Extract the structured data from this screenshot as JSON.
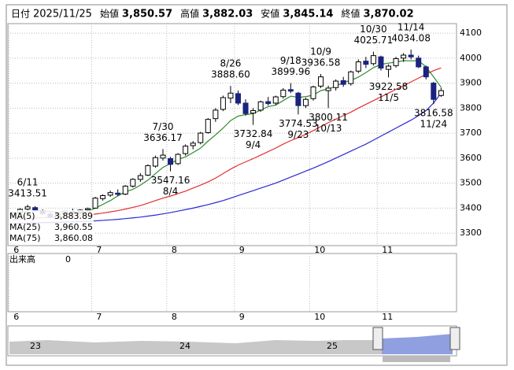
{
  "chart_data": {
    "type": "candlestick",
    "header": [
      {
        "label": "日付",
        "value": "2025/11/25"
      },
      {
        "label": "始値",
        "value": "3,850.57",
        "color": "#000000"
      },
      {
        "label": "高値",
        "value": "3,882.03",
        "color": "#e02020"
      },
      {
        "label": "安値",
        "value": "3,845.14",
        "color": "#208020"
      },
      {
        "label": "終値",
        "value": "3,870.02",
        "color": "#000000"
      }
    ],
    "categories": [
      "6",
      null,
      null,
      null,
      null,
      null,
      null,
      null,
      null,
      null,
      null,
      "7",
      null,
      null,
      null,
      null,
      null,
      null,
      null,
      null,
      null,
      "8",
      null,
      null,
      null,
      null,
      null,
      null,
      null,
      null,
      "9",
      null,
      null,
      null,
      null,
      null,
      null,
      null,
      null,
      null,
      "10",
      null,
      null,
      null,
      null,
      null,
      null,
      null,
      null,
      "11",
      null,
      null,
      null,
      null,
      null,
      null,
      null,
      null
    ],
    "ohlc": [
      [
        3370,
        3385,
        3362,
        3380
      ],
      [
        3382,
        3400,
        3375,
        3395
      ],
      [
        3396,
        3413.51,
        3390,
        3405
      ],
      [
        3402,
        3408,
        3385,
        3390
      ],
      [
        3388,
        3395,
        3372,
        3378
      ],
      [
        3376,
        3384,
        3360,
        3365
      ],
      [
        3365,
        3380,
        3358,
        3375
      ],
      [
        3376,
        3392,
        3370,
        3388
      ],
      [
        3387,
        3398,
        3378,
        3383
      ],
      [
        3384,
        3396,
        3375,
        3392
      ],
      [
        3393,
        3402,
        3382,
        3398
      ],
      [
        3400,
        3445,
        3398,
        3440
      ],
      [
        3438,
        3455,
        3430,
        3450
      ],
      [
        3452,
        3470,
        3445,
        3462
      ],
      [
        3460,
        3475,
        3448,
        3455
      ],
      [
        3456,
        3492,
        3452,
        3488
      ],
      [
        3488,
        3520,
        3482,
        3515
      ],
      [
        3515,
        3540,
        3505,
        3530
      ],
      [
        3532,
        3575,
        3528,
        3570
      ],
      [
        3568,
        3610,
        3562,
        3602
      ],
      [
        3600,
        3636.17,
        3590,
        3612
      ],
      [
        3598,
        3605,
        3547.16,
        3575
      ],
      [
        3578,
        3620,
        3572,
        3615
      ],
      [
        3618,
        3655,
        3610,
        3648
      ],
      [
        3650,
        3668,
        3635,
        3660
      ],
      [
        3662,
        3705,
        3655,
        3700
      ],
      [
        3702,
        3760,
        3698,
        3755
      ],
      [
        3758,
        3800,
        3745,
        3792
      ],
      [
        3795,
        3850,
        3788,
        3842
      ],
      [
        3840,
        3888.6,
        3820,
        3860
      ],
      [
        3858,
        3870,
        3812,
        3820
      ],
      [
        3820,
        3835,
        3770,
        3778
      ],
      [
        3780,
        3800,
        3732.84,
        3790
      ],
      [
        3792,
        3830,
        3785,
        3825
      ],
      [
        3826,
        3845,
        3810,
        3818
      ],
      [
        3820,
        3850,
        3812,
        3845
      ],
      [
        3846,
        3880,
        3838,
        3872
      ],
      [
        3874,
        3899.96,
        3860,
        3868
      ],
      [
        3860,
        3865,
        3774.53,
        3810
      ],
      [
        3810,
        3842,
        3800,
        3835
      ],
      [
        3838,
        3890,
        3830,
        3885
      ],
      [
        3888,
        3936.58,
        3880,
        3925
      ],
      [
        3870,
        3890,
        3800.11,
        3880
      ],
      [
        3882,
        3915,
        3870,
        3908
      ],
      [
        3910,
        3925,
        3885,
        3895
      ],
      [
        3898,
        3950,
        3890,
        3945
      ],
      [
        3948,
        3995,
        3940,
        3985
      ],
      [
        3988,
        4005,
        3960,
        3975
      ],
      [
        3978,
        4025.71,
        3970,
        4010
      ],
      [
        4005,
        4010,
        3950,
        3960
      ],
      [
        3955,
        3975,
        3922.58,
        3968
      ],
      [
        3970,
        4005,
        3962,
        3998
      ],
      [
        4000,
        4020,
        3985,
        4012
      ],
      [
        4012,
        4034.08,
        3995,
        4005
      ],
      [
        4000,
        4010,
        3960,
        3965
      ],
      [
        3965,
        3970,
        3915,
        3925
      ],
      [
        3900,
        3905,
        3816.58,
        3835
      ],
      [
        3850.57,
        3882.03,
        3845.14,
        3870.02
      ]
    ],
    "up_color": "#ffffff",
    "down_color": "#1a237e",
    "series": [
      {
        "name": "MA(5)",
        "value_label": "3,883.89",
        "color": "#2e8b2e",
        "values": [
          3375,
          3380,
          3388,
          3390,
          3390,
          3387,
          3383,
          3379,
          3378,
          3380,
          3387,
          3400,
          3415,
          3430,
          3449,
          3465,
          3475,
          3492,
          3512,
          3538,
          3563,
          3578,
          3595,
          3605,
          3622,
          3640,
          3668,
          3693,
          3720,
          3750,
          3768,
          3774,
          3778,
          3792,
          3806,
          3812,
          3830,
          3848,
          3843,
          3846,
          3852,
          3870,
          3877,
          3887,
          3903,
          3911,
          3924,
          3942,
          3962,
          3975,
          3980,
          3984,
          3990,
          3989,
          3990,
          3965,
          3925,
          3883.89
        ]
      },
      {
        "name": "MA(25)",
        "value_label": "3,960.55",
        "color": "#e03030",
        "values": [
          3352,
          3355,
          3358,
          3360,
          3362,
          3363,
          3365,
          3366,
          3368,
          3370,
          3372,
          3376,
          3380,
          3385,
          3390,
          3396,
          3403,
          3410,
          3420,
          3430,
          3440,
          3448,
          3458,
          3468,
          3480,
          3492,
          3505,
          3520,
          3538,
          3556,
          3572,
          3585,
          3598,
          3612,
          3626,
          3640,
          3656,
          3670,
          3682,
          3695,
          3710,
          3726,
          3742,
          3756,
          3770,
          3784,
          3800,
          3815,
          3830,
          3845,
          3860,
          3875,
          3890,
          3905,
          3920,
          3935,
          3950,
          3960.55
        ]
      },
      {
        "name": "MA(75)",
        "value_label": "3,860.08",
        "color": "#2a2ad0",
        "values": [
          3338,
          3339,
          3340,
          3341,
          3342,
          3342,
          3343,
          3344,
          3345,
          3346,
          3347,
          3349,
          3351,
          3353,
          3355,
          3358,
          3361,
          3364,
          3368,
          3372,
          3377,
          3382,
          3388,
          3394,
          3400,
          3407,
          3414,
          3422,
          3430,
          3440,
          3450,
          3460,
          3470,
          3480,
          3490,
          3500,
          3512,
          3524,
          3536,
          3548,
          3560,
          3573,
          3586,
          3600,
          3614,
          3628,
          3642,
          3656,
          3672,
          3688,
          3704,
          3720,
          3736,
          3752,
          3770,
          3790,
          3820,
          3860.08
        ]
      }
    ],
    "annotations": [
      {
        "date": "6/11",
        "value": 3413.51
      },
      {
        "date": "7/30",
        "value": 3636.17
      },
      {
        "date": "8/4",
        "value": 3547.16
      },
      {
        "date": "8/26",
        "value": 3888.6,
        "value_label": "3888.60"
      },
      {
        "date": "9/4",
        "value": 3732.84
      },
      {
        "date": "9/18",
        "value": 3899.96
      },
      {
        "date": "9/23",
        "value": 3774.53
      },
      {
        "date": "10/9",
        "value": 3936.58
      },
      {
        "date": "10/13",
        "value": 3800.11
      },
      {
        "date": "10/30",
        "value": 4025.71
      },
      {
        "date": "11/5",
        "value": 3922.58
      },
      {
        "date": "11/14",
        "value": 4034.08
      },
      {
        "date": "11/24",
        "value": 3816.58
      }
    ],
    "ylim": [
      3250,
      4138
    ],
    "yticks": [
      3300,
      3400,
      3500,
      3600,
      3700,
      3800,
      3900,
      4000,
      4100
    ],
    "grid": true,
    "volume": {
      "label": "出来高",
      "value": 0
    },
    "navigator": {
      "labels": [
        "23",
        "24",
        "25"
      ]
    }
  }
}
